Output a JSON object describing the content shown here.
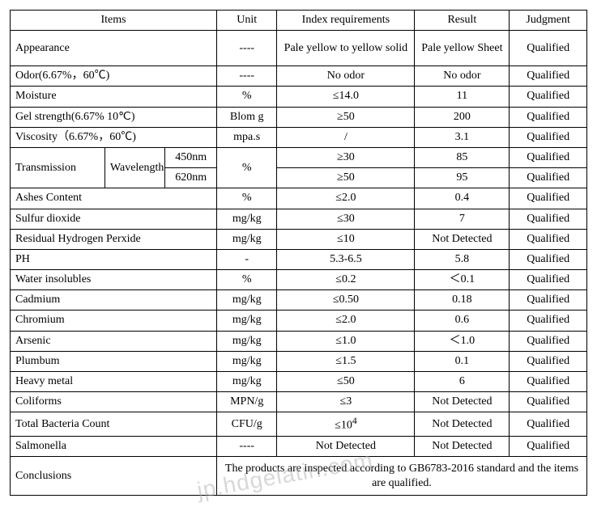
{
  "headers": {
    "items": "Items",
    "unit": "Unit",
    "index": "Index requirements",
    "result": "Result",
    "judgment": "Judgment"
  },
  "rows": {
    "appearance": {
      "item": "Appearance",
      "unit": "----",
      "index": "Pale yellow to yellow solid",
      "result": "Pale yellow Sheet",
      "judg": "Qualified"
    },
    "odor": {
      "item": "Odor(6.67%，60℃)",
      "unit": "----",
      "index": "No odor",
      "result": "No odor",
      "judg": "Qualified"
    },
    "moisture": {
      "item": "Moisture",
      "unit": "%",
      "index": "≤14.0",
      "result": "11",
      "judg": "Qualified"
    },
    "gel": {
      "item": "Gel strength(6.67%    10℃)",
      "unit": "Blom g",
      "index": "≥50",
      "result": "200",
      "judg": "Qualified"
    },
    "visc": {
      "item": "Viscosity（6.67%，60℃)",
      "unit": "mpa.s",
      "index": "/",
      "result": "3.1",
      "judg": "Qualified"
    },
    "trans": {
      "item": "Transmission",
      "wavelength_label": "Wavelength",
      "w1": "450nm",
      "w2": "620nm",
      "unit": "%",
      "idx1": "≥30",
      "res1": "85",
      "judg1": "Qualified",
      "idx2": "≥50",
      "res2": "95",
      "judg2": "Qualified"
    },
    "ashes": {
      "item": "Ashes Content",
      "unit": "%",
      "index": "≤2.0",
      "result": "0.4",
      "judg": "Qualified"
    },
    "so2": {
      "item": "Sulfur dioxide",
      "unit": "mg/kg",
      "index": "≤30",
      "result": "7",
      "judg": "Qualified"
    },
    "h2o2": {
      "item": "Residual Hydrogen Perxide",
      "unit": "mg/kg",
      "index": "≤10",
      "result": "Not Detected",
      "judg": "Qualified"
    },
    "ph": {
      "item": "PH",
      "unit": "-",
      "index": "5.3-6.5",
      "result": "5.8",
      "judg": "Qualified"
    },
    "insol": {
      "item": "Water insolubles",
      "unit": "%",
      "index": "≤0.2",
      "result": "＜0.1",
      "judg": "Qualified"
    },
    "cd": {
      "item": "Cadmium",
      "unit": "mg/kg",
      "index": "≤0.50",
      "result": "0.18",
      "judg": "Qualified"
    },
    "cr": {
      "item": "Chromium",
      "unit": "mg/kg",
      "index": "≤2.0",
      "result": "0.6",
      "judg": "Qualified"
    },
    "as": {
      "item": "Arsenic",
      "unit": "mg/kg",
      "index": "≤1.0",
      "result": "＜1.0",
      "judg": "Qualified"
    },
    "pb": {
      "item": "Plumbum",
      "unit": "mg/kg",
      "index": "≤1.5",
      "result": "0.1",
      "judg": "Qualified"
    },
    "hm": {
      "item": "Heavy metal",
      "unit": "mg/kg",
      "index": "≤50",
      "result": "6",
      "judg": "Qualified"
    },
    "coli": {
      "item": "Coliforms",
      "unit": "MPN/g",
      "index": "≤3",
      "result": "Not Detected",
      "judg": "Qualified"
    },
    "tbc": {
      "item": "Total Bacteria Count",
      "unit": "CFU/g",
      "index_html": "≤10<sup>4</sup>",
      "result": "Not Detected",
      "judg": "Qualified"
    },
    "salm": {
      "item": "Salmonella",
      "unit": "----",
      "index": "Not Detected",
      "result": "Not Detected",
      "judg": "Qualified"
    },
    "concl": {
      "item": "Conclusions",
      "text": "The products are inspected according to GB6783-2016 standard and the items are qualified."
    }
  },
  "watermark": "jp.hdgelatin.com"
}
